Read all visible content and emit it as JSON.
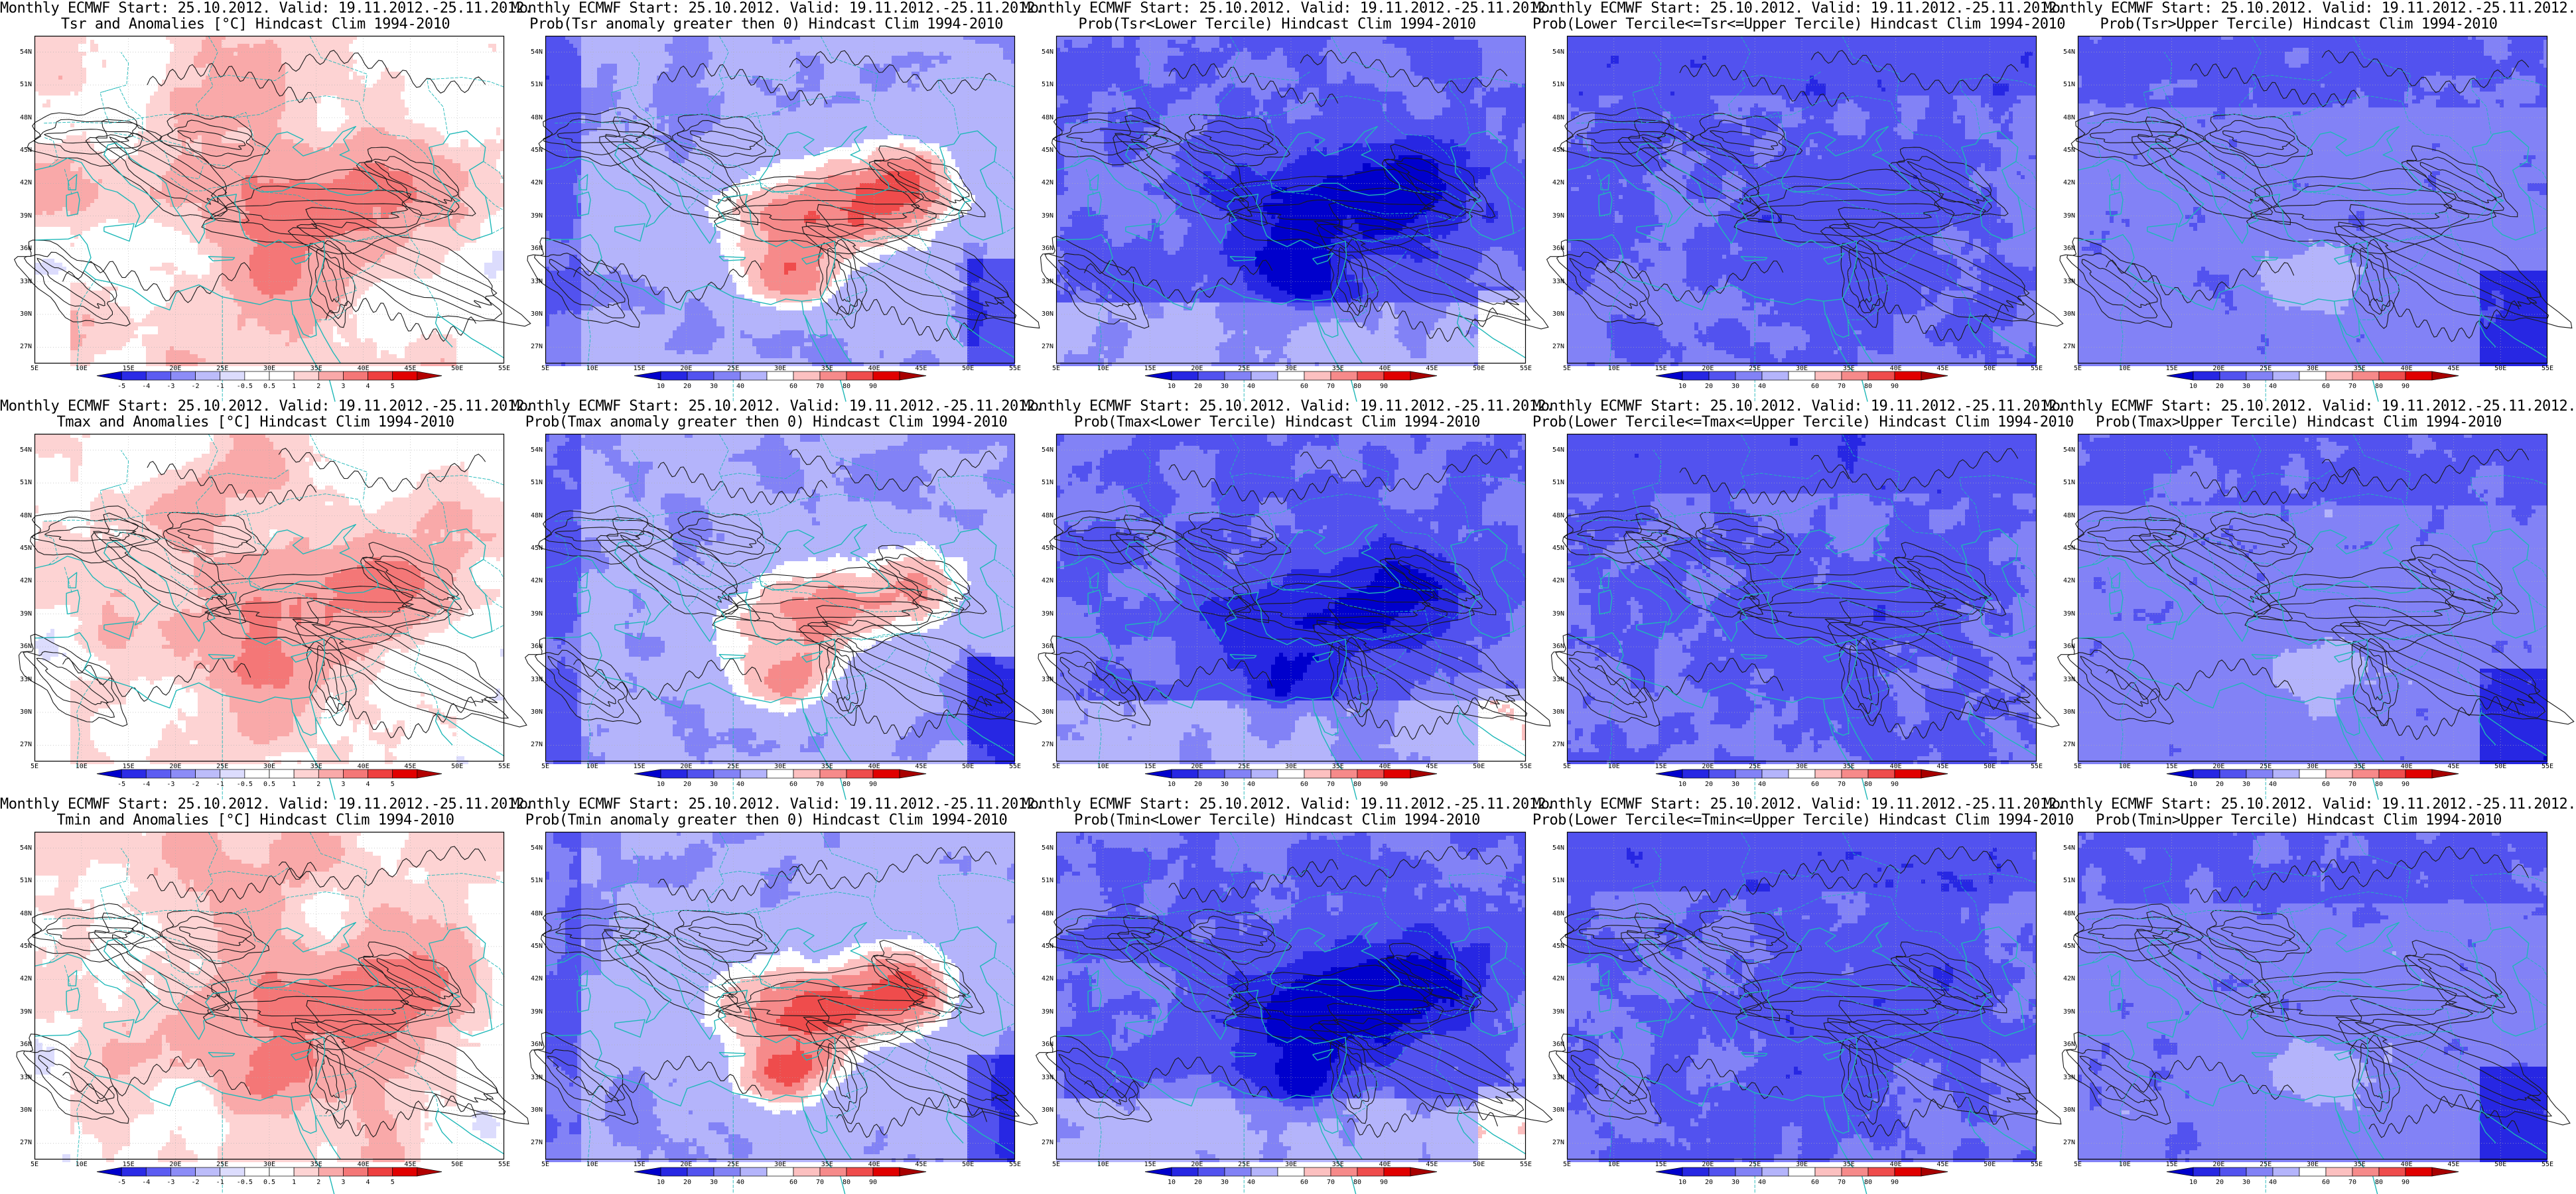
{
  "palettes": {
    "anom": [
      "#0000cc",
      "#2b2be6",
      "#5c5cf2",
      "#8c8cf7",
      "#bcbcfa",
      "#dcdcfd",
      "#ffffff",
      "#ffffff",
      "#fdd3d3",
      "#f9a9a9",
      "#f47777",
      "#ee3f3f",
      "#e10000",
      "#b20000"
    ],
    "prob": [
      "#0000cc",
      "#2727e3",
      "#5252ef",
      "#8282f6",
      "#b4b4fb",
      "#ffffff",
      "#fcc0c0",
      "#f68a8a",
      "#ef4c4c",
      "#e00000",
      "#a80000"
    ]
  },
  "axes": {
    "lat_ticks": [
      "54N",
      "51N",
      "48N",
      "45N",
      "42N",
      "39N",
      "36N",
      "33N",
      "30N",
      "27N"
    ],
    "lon_ticks": [
      "5E",
      "10E",
      "15E",
      "20E",
      "25E",
      "30E",
      "35E",
      "40E",
      "45E",
      "50E",
      "55E"
    ]
  },
  "colorbars": {
    "anom_tsr": [
      "-5",
      "-4",
      "-3",
      "-2",
      "-1",
      "-0.5",
      "0.5",
      "1",
      "2",
      "3",
      "4",
      "5"
    ],
    "anom": [
      "-5",
      "-4",
      "-3",
      "-2",
      "-1",
      "-0.5",
      "0.5",
      "1",
      "2",
      "3",
      "4",
      "5"
    ],
    "prob": [
      "10",
      "20",
      "30",
      "40",
      "60",
      "70",
      "80",
      "90"
    ]
  },
  "panels": [
    {
      "title1": "Monthly ECMWF Start: 25.10.2012. Valid: 19.11.2012.-25.11.2012.",
      "title2": "Tsr and Anomalies [°C] Hindcast Clim 1994-2010",
      "kind": "anom",
      "cb": "anom_tsr",
      "variant": "tsr",
      "mode": "warm"
    },
    {
      "title1": "Monthly ECMWF Start: 25.10.2012. Valid: 19.11.2012.-25.11.2012.",
      "title2": "Prob(Tsr anomaly greater then 0) Hindcast Clim 1994-2010",
      "kind": "prob",
      "cb": "prob",
      "variant": "tsr",
      "mode": "probpos"
    },
    {
      "title1": "Monthly ECMWF Start: 25.10.2012. Valid: 19.11.2012.-25.11.2012.",
      "title2": "Prob(Tsr<Lower Tercile) Hindcast Clim 1994-2010",
      "kind": "prob",
      "cb": "prob",
      "variant": "tsr",
      "mode": "lower"
    },
    {
      "title1": "Monthly ECMWF Start: 25.10.2012. Valid: 19.11.2012.-25.11.2012.",
      "title2": "Prob(Lower Tercile<=Tsr<=Upper Tercile) Hindcast Clim 1994-2010",
      "kind": "prob",
      "cb": "prob",
      "variant": "tsr",
      "mode": "middle"
    },
    {
      "title1": "Monthly ECMWF Start: 25.10.2012. Valid: 19.11.2012.-25.11.2012.",
      "title2": "Prob(Tsr>Upper Tercile) Hindcast Clim 1994-2010",
      "kind": "prob",
      "cb": "prob",
      "variant": "tsr",
      "mode": "upper"
    },
    {
      "title1": "Monthly ECMWF Start: 25.10.2012. Valid: 19.11.2012.-25.11.2012.",
      "title2": "Tmax and Anomalies [°C] Hindcast Clim 1994-2010",
      "kind": "anom",
      "cb": "anom",
      "variant": "tmax",
      "mode": "warm"
    },
    {
      "title1": "Monthly ECMWF Start: 25.10.2012. Valid: 19.11.2012.-25.11.2012.",
      "title2": "Prob(Tmax anomaly greater then 0) Hindcast Clim 1994-2010",
      "kind": "prob",
      "cb": "prob",
      "variant": "tmax",
      "mode": "probpos"
    },
    {
      "title1": "Monthly ECMWF Start: 25.10.2012. Valid: 19.11.2012.-25.11.2012.",
      "title2": "Prob(Tmax<Lower Tercile) Hindcast Clim 1994-2010",
      "kind": "prob",
      "cb": "prob",
      "variant": "tmax",
      "mode": "lower"
    },
    {
      "title1": "Monthly ECMWF Start: 25.10.2012. Valid: 19.11.2012.-25.11.2012.",
      "title2": "Prob(Lower Tercile<=Tmax<=Upper Tercile) Hindcast Clim 1994-2010",
      "kind": "prob",
      "cb": "prob",
      "variant": "tmax",
      "mode": "middle"
    },
    {
      "title1": "Monthly ECMWF Start: 25.10.2012. Valid: 19.11.2012.-25.11.2012.",
      "title2": "Prob(Tmax>Upper Tercile) Hindcast Clim 1994-2010",
      "kind": "prob",
      "cb": "prob",
      "variant": "tmax",
      "mode": "upper"
    },
    {
      "title1": "Monthly ECMWF Start: 25.10.2012. Valid: 19.11.2012.-25.11.2012.",
      "title2": "Tmin and Anomalies [°C] Hindcast Clim 1994-2010",
      "kind": "anom",
      "cb": "anom",
      "variant": "tmin",
      "mode": "warm"
    },
    {
      "title1": "Monthly ECMWF Start: 25.10.2012. Valid: 19.11.2012.-25.11.2012.",
      "title2": "Prob(Tmin anomaly greater then 0) Hindcast Clim 1994-2010",
      "kind": "prob",
      "cb": "prob",
      "variant": "tmin",
      "mode": "probpos"
    },
    {
      "title1": "Monthly ECMWF Start: 25.10.2012. Valid: 19.11.2012.-25.11.2012.",
      "title2": "Prob(Tmin<Lower Tercile) Hindcast Clim 1994-2010",
      "kind": "prob",
      "cb": "prob",
      "variant": "tmin",
      "mode": "lower"
    },
    {
      "title1": "Monthly ECMWF Start: 25.10.2012. Valid: 19.11.2012.-25.11.2012.",
      "title2": "Prob(Lower Tercile<=Tmin<=Upper Tercile) Hindcast Clim 1994-2010",
      "kind": "prob",
      "cb": "prob",
      "variant": "tmin",
      "mode": "middle"
    },
    {
      "title1": "Monthly ECMWF Start: 25.10.2012. Valid: 19.11.2012.-25.11.2012.",
      "title2": "Prob(Tmin>Upper Tercile) Hindcast Clim 1994-2010",
      "kind": "prob",
      "cb": "prob",
      "variant": "tmin",
      "mode": "upper"
    }
  ]
}
